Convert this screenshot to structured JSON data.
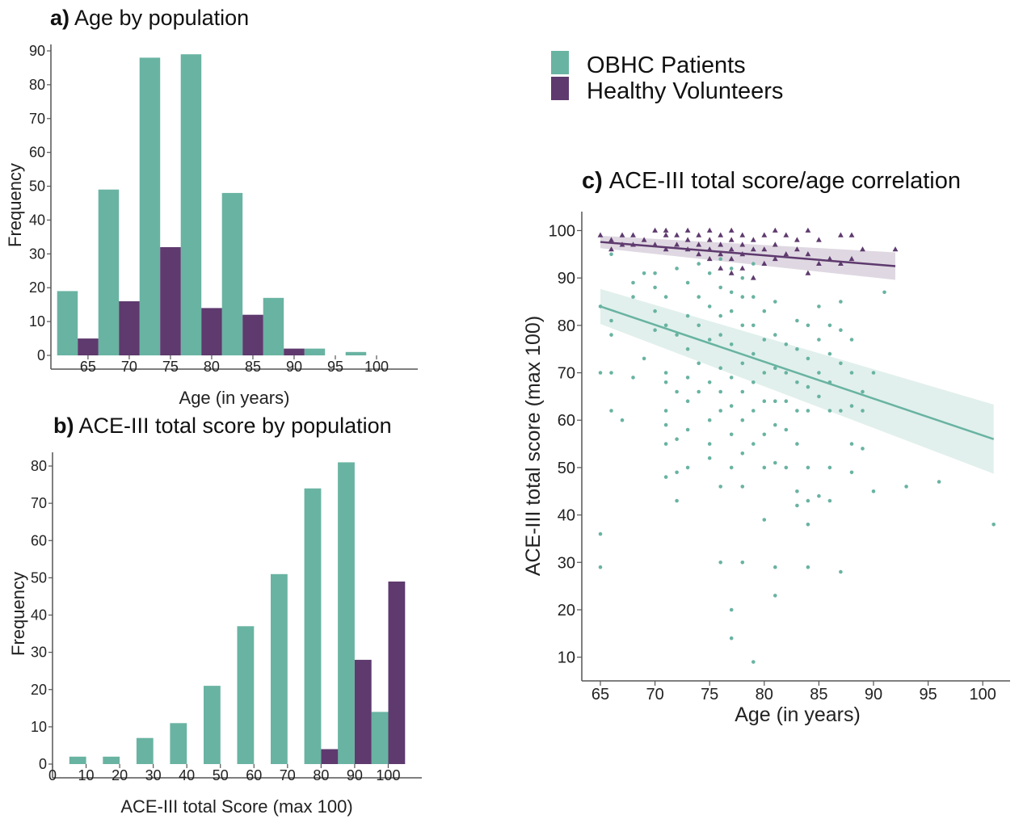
{
  "colors": {
    "patients": "#69b3a2",
    "volunteers": "#5e3a6e"
  },
  "legend": [
    {
      "label": "OBHC Patients",
      "color": "#69b3a2"
    },
    {
      "label": "Healthy Volunteers",
      "color": "#5e3a6e"
    }
  ],
  "chart_data": [
    {
      "id": "a",
      "type": "bar",
      "title_letter": "a)",
      "title": "Age by population",
      "xlabel": "Age (in years)",
      "ylabel": "Frequency",
      "xlim": [
        60.5,
        105
      ],
      "ylim": [
        0,
        90
      ],
      "xticks": [
        65,
        70,
        75,
        80,
        85,
        90,
        95,
        100
      ],
      "yticks": [
        0,
        10,
        20,
        30,
        40,
        50,
        60,
        70,
        80,
        90
      ],
      "bin_width": 2.5,
      "series": [
        {
          "name": "OBHC Patients",
          "x": [
            62.5,
            67.5,
            72.5,
            77.5,
            82.5,
            87.5,
            92.5,
            97.5
          ],
          "values": [
            19,
            49,
            88,
            89,
            48,
            17,
            2,
            1
          ]
        },
        {
          "name": "Healthy Volunteers",
          "x": [
            65,
            70,
            75,
            80,
            85,
            90
          ],
          "values": [
            5,
            16,
            32,
            14,
            12,
            2
          ]
        }
      ]
    },
    {
      "id": "b",
      "type": "bar",
      "title_letter": "b)",
      "title": "ACE-III total score by population",
      "xlabel": "ACE-III total Score (max 100)",
      "ylabel": "Frequency",
      "xlim": [
        0,
        110
      ],
      "ylim": [
        0,
        80
      ],
      "xticks": [
        0,
        10,
        20,
        30,
        40,
        50,
        60,
        70,
        80,
        90,
        100
      ],
      "yticks": [
        0,
        10,
        20,
        30,
        40,
        50,
        60,
        70,
        80
      ],
      "bin_width": 5,
      "series": [
        {
          "name": "OBHC Patients",
          "x": [
            7.5,
            17.5,
            27.5,
            37.5,
            47.5,
            57.5,
            67.5,
            77.5,
            87.5,
            97.5
          ],
          "values": [
            2,
            2,
            7,
            11,
            21,
            37,
            51,
            74,
            81,
            14
          ]
        },
        {
          "name": "Healthy Volunteers",
          "x": [
            82.5,
            92.5,
            102.5
          ],
          "values": [
            4,
            28,
            49
          ]
        }
      ]
    },
    {
      "id": "c",
      "type": "scatter",
      "title_letter": "c)",
      "title": "ACE-III total score/age correlation",
      "xlabel": "Age (in years)",
      "ylabel": "ACE-III total score (max 100)",
      "xlim": [
        63.3,
        102.5
      ],
      "ylim": [
        5,
        104
      ],
      "xticks": [
        65,
        70,
        75,
        80,
        85,
        90,
        95,
        100
      ],
      "yticks": [
        10,
        20,
        30,
        40,
        50,
        60,
        70,
        80,
        90,
        100
      ],
      "series": [
        {
          "name": "OBHC Patients",
          "marker": "circle",
          "points": [
            [
              65,
              36
            ],
            [
              65,
              29
            ],
            [
              65,
              70
            ],
            [
              65,
              84
            ],
            [
              66,
              70
            ],
            [
              66,
              62
            ],
            [
              66,
              78
            ],
            [
              66,
              81
            ],
            [
              66,
              95
            ],
            [
              67,
              60
            ],
            [
              68,
              86
            ],
            [
              68,
              69
            ],
            [
              68,
              89
            ],
            [
              69,
              73
            ],
            [
              69,
              91
            ],
            [
              70,
              83
            ],
            [
              70,
              91
            ],
            [
              70,
              88
            ],
            [
              70,
              79
            ],
            [
              71,
              70
            ],
            [
              71,
              68
            ],
            [
              71,
              59
            ],
            [
              71,
              55
            ],
            [
              71,
              48
            ],
            [
              71,
              62
            ],
            [
              71,
              80
            ],
            [
              71,
              86
            ],
            [
              72,
              49
            ],
            [
              72,
              43
            ],
            [
              72,
              56
            ],
            [
              72,
              66
            ],
            [
              72,
              78
            ],
            [
              72,
              92
            ],
            [
              73,
              50
            ],
            [
              73,
              58
            ],
            [
              73,
              64
            ],
            [
              73,
              69
            ],
            [
              73,
              75
            ],
            [
              73,
              82
            ],
            [
              73,
              89
            ],
            [
              74,
              72
            ],
            [
              74,
              66
            ],
            [
              74,
              80
            ],
            [
              74,
              86
            ],
            [
              74,
              93
            ],
            [
              75,
              55
            ],
            [
              75,
              52
            ],
            [
              75,
              60
            ],
            [
              75,
              68
            ],
            [
              75,
              77
            ],
            [
              75,
              84
            ],
            [
              75,
              91
            ],
            [
              76,
              30
            ],
            [
              76,
              46
            ],
            [
              76,
              62
            ],
            [
              76,
              66
            ],
            [
              76,
              71
            ],
            [
              76,
              78
            ],
            [
              76,
              82
            ],
            [
              76,
              88
            ],
            [
              76,
              94
            ],
            [
              77,
              20
            ],
            [
              77,
              14
            ],
            [
              77,
              50
            ],
            [
              77,
              57
            ],
            [
              77,
              63
            ],
            [
              77,
              69
            ],
            [
              77,
              76
            ],
            [
              77,
              83
            ],
            [
              77,
              87
            ],
            [
              77,
              92
            ],
            [
              78,
              46
            ],
            [
              78,
              30
            ],
            [
              78,
              53
            ],
            [
              78,
              60
            ],
            [
              78,
              66
            ],
            [
              78,
              72
            ],
            [
              78,
              80
            ],
            [
              78,
              86
            ],
            [
              78,
              90
            ],
            [
              79,
              9
            ],
            [
              79,
              55
            ],
            [
              79,
              62
            ],
            [
              79,
              68
            ],
            [
              79,
              74
            ],
            [
              79,
              80
            ],
            [
              79,
              86
            ],
            [
              79,
              93
            ],
            [
              80,
              39
            ],
            [
              80,
              50
            ],
            [
              80,
              57
            ],
            [
              80,
              64
            ],
            [
              80,
              70
            ],
            [
              80,
              77
            ],
            [
              80,
              83
            ],
            [
              81,
              23
            ],
            [
              81,
              29
            ],
            [
              81,
              51
            ],
            [
              81,
              59
            ],
            [
              81,
              64
            ],
            [
              81,
              71
            ],
            [
              81,
              78
            ],
            [
              81,
              85
            ],
            [
              82,
              50
            ],
            [
              82,
              58
            ],
            [
              82,
              64
            ],
            [
              82,
              70
            ],
            [
              82,
              76
            ],
            [
              83,
              42
            ],
            [
              83,
              45
            ],
            [
              83,
              55
            ],
            [
              83,
              62
            ],
            [
              83,
              68
            ],
            [
              83,
              75
            ],
            [
              83,
              81
            ],
            [
              84,
              38
            ],
            [
              84,
              29
            ],
            [
              84,
              43
            ],
            [
              84,
              50
            ],
            [
              84,
              62
            ],
            [
              84,
              67
            ],
            [
              84,
              73
            ],
            [
              84,
              80
            ],
            [
              85,
              44
            ],
            [
              85,
              65
            ],
            [
              85,
              70
            ],
            [
              85,
              77
            ],
            [
              85,
              84
            ],
            [
              86,
              43
            ],
            [
              86,
              50
            ],
            [
              86,
              62
            ],
            [
              86,
              68
            ],
            [
              86,
              74
            ],
            [
              86,
              80
            ],
            [
              87,
              28
            ],
            [
              87,
              62
            ],
            [
              87,
              72
            ],
            [
              87,
              79
            ],
            [
              87,
              85
            ],
            [
              88,
              49
            ],
            [
              88,
              55
            ],
            [
              88,
              63
            ],
            [
              88,
              70
            ],
            [
              88,
              77
            ],
            [
              89,
              54
            ],
            [
              89,
              62
            ],
            [
              89,
              66
            ],
            [
              90,
              70
            ],
            [
              90,
              45
            ],
            [
              91,
              87
            ],
            [
              93,
              46
            ],
            [
              96,
              47
            ],
            [
              101,
              38
            ]
          ]
        },
        {
          "name": "Healthy Volunteers",
          "marker": "triangle",
          "points": [
            [
              65,
              99
            ],
            [
              66,
              98
            ],
            [
              66,
              96
            ],
            [
              67,
              99
            ],
            [
              67,
              97
            ],
            [
              68,
              99
            ],
            [
              68,
              97
            ],
            [
              69,
              98
            ],
            [
              70,
              100
            ],
            [
              70,
              97
            ],
            [
              71,
              100
            ],
            [
              71,
              99
            ],
            [
              71,
              96
            ],
            [
              72,
              99
            ],
            [
              72,
              97
            ],
            [
              73,
              100
            ],
            [
              73,
              98
            ],
            [
              73,
              96
            ],
            [
              74,
              99
            ],
            [
              74,
              97
            ],
            [
              74,
              95
            ],
            [
              75,
              100
            ],
            [
              75,
              98
            ],
            [
              75,
              96
            ],
            [
              75,
              94
            ],
            [
              76,
              99
            ],
            [
              76,
              97
            ],
            [
              76,
              95
            ],
            [
              76,
              92
            ],
            [
              77,
              100
            ],
            [
              77,
              98
            ],
            [
              77,
              96
            ],
            [
              77,
              94
            ],
            [
              77,
              91
            ],
            [
              78,
              99
            ],
            [
              78,
              97
            ],
            [
              78,
              95
            ],
            [
              78,
              92
            ],
            [
              79,
              98
            ],
            [
              79,
              96
            ],
            [
              79,
              90
            ],
            [
              80,
              99
            ],
            [
              80,
              96
            ],
            [
              80,
              93
            ],
            [
              81,
              100
            ],
            [
              81,
              97
            ],
            [
              81,
              94
            ],
            [
              82,
              99
            ],
            [
              82,
              95
            ],
            [
              83,
              98
            ],
            [
              83,
              96
            ],
            [
              84,
              100
            ],
            [
              84,
              95
            ],
            [
              84,
              91
            ],
            [
              85,
              98
            ],
            [
              85,
              93
            ],
            [
              86,
              94
            ],
            [
              87,
              99
            ],
            [
              87,
              93
            ],
            [
              88,
              99
            ],
            [
              88,
              94
            ],
            [
              89,
              96
            ],
            [
              92,
              96
            ]
          ]
        }
      ],
      "fits": [
        {
          "name": "OBHC Patients",
          "x": [
            65,
            101
          ],
          "y": [
            84.0,
            56.0
          ],
          "ci_low": [
            80.3,
            48.7
          ],
          "ci_high": [
            87.7,
            63.3
          ]
        },
        {
          "name": "Healthy Volunteers",
          "x": [
            65,
            92
          ],
          "y": [
            97.6,
            92.5
          ],
          "ci_low": [
            96.3,
            89.6
          ],
          "ci_high": [
            98.9,
            95.4
          ]
        }
      ]
    }
  ]
}
